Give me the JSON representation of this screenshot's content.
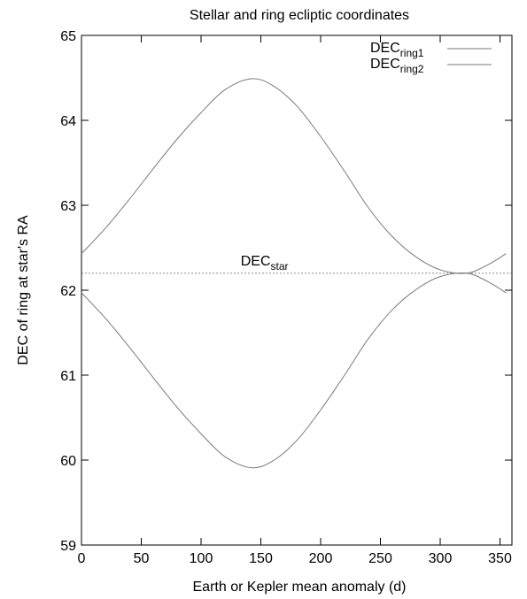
{
  "chart_data": {
    "type": "line",
    "title": "Stellar and ring ecliptic coordinates",
    "xlabel": "Earth or Kepler mean anomaly (d)",
    "ylabel": "DEC of ring at star's RA",
    "xlim": [
      0,
      360
    ],
    "ylim": [
      59,
      65
    ],
    "xticks": [
      0,
      50,
      100,
      150,
      200,
      250,
      300,
      350
    ],
    "yticks": [
      59,
      60,
      61,
      62,
      63,
      64,
      65
    ],
    "grid": false,
    "legend_position": "top-right",
    "series": [
      {
        "name": "DEC",
        "name_sub": "ring1",
        "color": "#7a7a7a",
        "x": [
          0,
          20,
          40,
          60,
          80,
          100,
          120,
          142,
          160,
          180,
          200,
          220,
          240,
          260,
          280,
          300,
          322,
          340,
          355
        ],
        "y": [
          62.43,
          62.73,
          63.07,
          63.43,
          63.78,
          64.09,
          64.36,
          64.49,
          64.41,
          64.17,
          63.81,
          63.4,
          62.97,
          62.63,
          62.39,
          62.24,
          62.2,
          62.3,
          62.43
        ]
      },
      {
        "name": "DEC",
        "name_sub": "ring2",
        "color": "#7a7a7a",
        "x": [
          0,
          20,
          40,
          60,
          80,
          100,
          120,
          142,
          160,
          180,
          200,
          220,
          240,
          260,
          280,
          300,
          322,
          340,
          355
        ],
        "y": [
          61.97,
          61.67,
          61.33,
          60.97,
          60.62,
          60.31,
          60.04,
          59.91,
          59.99,
          60.23,
          60.59,
          61.0,
          61.43,
          61.77,
          62.01,
          62.16,
          62.2,
          62.1,
          61.97
        ]
      },
      {
        "name": "DEC",
        "name_sub": "star",
        "color": "#7a7a7a",
        "dashed": true,
        "x": [
          0,
          360
        ],
        "y": [
          62.2,
          62.2
        ]
      }
    ],
    "annotations": [
      {
        "text": "DEC",
        "sub": "star",
        "x": 165,
        "y": 62.2
      }
    ]
  }
}
